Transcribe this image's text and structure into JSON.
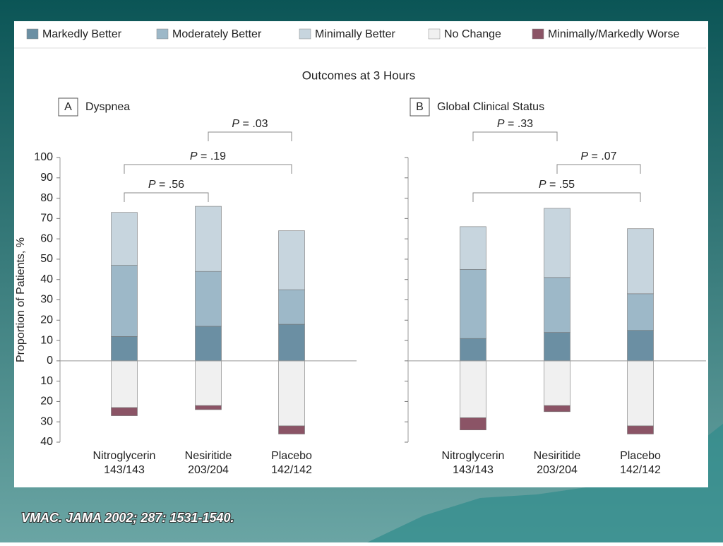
{
  "title": "Outcomes at 3 Hours",
  "legend": {
    "entries": [
      {
        "name": "Markedly Better",
        "color": "#6b8fa3"
      },
      {
        "name": "Moderately Better",
        "color": "#9db8c8"
      },
      {
        "name": "Minimally Better",
        "color": "#c7d5de"
      },
      {
        "name": "No Change",
        "color": "#f0f0f0"
      },
      {
        "name": "Minimally/Markedly Worse",
        "color": "#8b5466"
      }
    ]
  },
  "citation": "VMAC. JAMA 2002; 287: 1531-1540.",
  "chart_data": [
    {
      "type": "bar",
      "stacked": true,
      "panel_letter": "A",
      "title": "Dyspnea",
      "y_label": "Proportion of Patients, %",
      "categories": [
        "Nitroglycerin",
        "Nesiritide",
        "Placebo"
      ],
      "category_counts": [
        "143/143",
        "203/204",
        "142/142"
      ],
      "series": [
        {
          "values": [
            12,
            17,
            18
          ]
        },
        {
          "values": [
            35,
            27,
            17
          ]
        },
        {
          "values": [
            26,
            32,
            29
          ]
        },
        {
          "values": [
            -23,
            -22,
            -32
          ]
        },
        {
          "values": [
            -4,
            -2,
            -4
          ]
        }
      ],
      "ylim": [
        -40,
        100
      ],
      "tick_labels": true,
      "yticks": [
        {
          "value": -40,
          "label": "40"
        },
        {
          "value": -30,
          "label": "30"
        },
        {
          "value": -20,
          "label": "20"
        },
        {
          "value": -10,
          "label": "10"
        },
        0,
        10,
        20,
        30,
        40,
        50,
        60,
        70,
        80,
        90,
        100
      ],
      "annotations": [
        "P = .03",
        "P = .19",
        "P = .56"
      ]
    },
    {
      "type": "bar",
      "stacked": true,
      "panel_letter": "B",
      "title": "Global Clinical Status",
      "categories": [
        "Nitroglycerin",
        "Nesiritide",
        "Placebo"
      ],
      "category_counts": [
        "143/143",
        "203/204",
        "142/142"
      ],
      "series": [
        {
          "values": [
            11,
            14,
            15
          ]
        },
        {
          "values": [
            34,
            27,
            18
          ]
        },
        {
          "values": [
            21,
            34,
            32
          ]
        },
        {
          "values": [
            -28,
            -22,
            -32
          ]
        },
        {
          "values": [
            -6,
            -3,
            -4
          ]
        }
      ],
      "ylim": [
        -40,
        100
      ],
      "tick_labels": false,
      "yticks": [
        -40,
        -30,
        -20,
        -10,
        0,
        10,
        20,
        30,
        40,
        50,
        60,
        70,
        80,
        90,
        100
      ],
      "annotations": [
        "P = .33",
        "P = .07",
        "P = .55"
      ]
    }
  ]
}
